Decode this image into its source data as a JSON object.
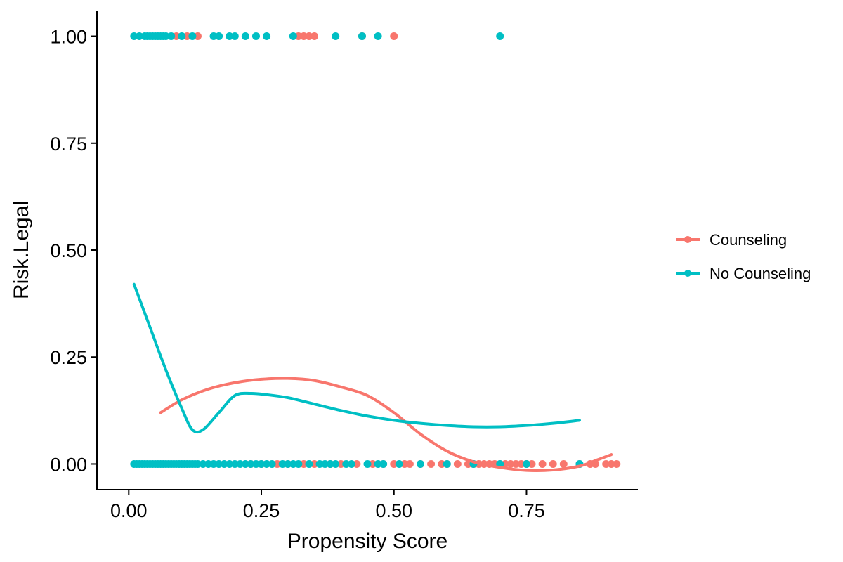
{
  "chart_data": {
    "type": "scatter",
    "title": "",
    "xlabel": "Propensity Score",
    "ylabel": "Risk.Legal",
    "xlim": [
      -0.06,
      0.96
    ],
    "ylim": [
      -0.06,
      1.06
    ],
    "x_ticks": [
      0.0,
      0.25,
      0.5,
      0.75
    ],
    "x_tick_labels": [
      "0.00",
      "0.25",
      "0.50",
      "0.75"
    ],
    "y_ticks": [
      0.0,
      0.25,
      0.5,
      0.75,
      1.0
    ],
    "y_tick_labels": [
      "0.00",
      "0.25",
      "0.50",
      "0.75",
      "1.00"
    ],
    "grid": false,
    "legend": {
      "position": "right",
      "entries": [
        {
          "label": "Counseling",
          "color": "#F8766D"
        },
        {
          "label": "No Counseling",
          "color": "#00BFC4"
        }
      ]
    },
    "series": [
      {
        "name": "Counseling",
        "color": "#F8766D",
        "points_y1": [
          0.09,
          0.11,
          0.13,
          0.32,
          0.33,
          0.34,
          0.35,
          0.44,
          0.5
        ],
        "points_y0": [
          0.23,
          0.25,
          0.28,
          0.3,
          0.33,
          0.35,
          0.38,
          0.4,
          0.43,
          0.46,
          0.48,
          0.5,
          0.52,
          0.53,
          0.55,
          0.57,
          0.59,
          0.6,
          0.62,
          0.64,
          0.65,
          0.66,
          0.67,
          0.68,
          0.69,
          0.7,
          0.71,
          0.72,
          0.73,
          0.74,
          0.75,
          0.76,
          0.78,
          0.8,
          0.82,
          0.85,
          0.87,
          0.88,
          0.9,
          0.91,
          0.92
        ],
        "smooth": {
          "x": [
            0.06,
            0.1,
            0.15,
            0.2,
            0.25,
            0.3,
            0.35,
            0.4,
            0.45,
            0.5,
            0.55,
            0.6,
            0.65,
            0.7,
            0.75,
            0.8,
            0.85,
            0.88,
            0.91
          ],
          "y": [
            0.12,
            0.15,
            0.175,
            0.19,
            0.198,
            0.2,
            0.195,
            0.18,
            0.16,
            0.12,
            0.07,
            0.03,
            0.005,
            -0.008,
            -0.015,
            -0.014,
            -0.005,
            0.008,
            0.022
          ]
        }
      },
      {
        "name": "No Counseling",
        "color": "#00BFC4",
        "points_y1": [
          0.01,
          0.02,
          0.03,
          0.035,
          0.04,
          0.045,
          0.05,
          0.055,
          0.06,
          0.065,
          0.07,
          0.08,
          0.1,
          0.12,
          0.16,
          0.17,
          0.19,
          0.2,
          0.22,
          0.24,
          0.26,
          0.31,
          0.39,
          0.44,
          0.47,
          0.7
        ],
        "points_y0": [
          0.01,
          0.015,
          0.02,
          0.025,
          0.03,
          0.035,
          0.04,
          0.045,
          0.05,
          0.055,
          0.06,
          0.065,
          0.07,
          0.075,
          0.08,
          0.085,
          0.09,
          0.095,
          0.1,
          0.105,
          0.11,
          0.115,
          0.12,
          0.125,
          0.13,
          0.14,
          0.15,
          0.16,
          0.17,
          0.18,
          0.19,
          0.2,
          0.21,
          0.22,
          0.23,
          0.24,
          0.25,
          0.26,
          0.27,
          0.29,
          0.3,
          0.31,
          0.32,
          0.34,
          0.36,
          0.37,
          0.38,
          0.39,
          0.41,
          0.42,
          0.45,
          0.47,
          0.48,
          0.51,
          0.55,
          0.6,
          0.65,
          0.7,
          0.75,
          0.85
        ],
        "smooth": {
          "x": [
            0.01,
            0.04,
            0.07,
            0.1,
            0.12,
            0.14,
            0.17,
            0.2,
            0.23,
            0.26,
            0.3,
            0.35,
            0.4,
            0.45,
            0.5,
            0.55,
            0.6,
            0.65,
            0.7,
            0.75,
            0.8,
            0.85
          ],
          "y": [
            0.42,
            0.32,
            0.22,
            0.13,
            0.08,
            0.08,
            0.12,
            0.16,
            0.165,
            0.162,
            0.155,
            0.14,
            0.125,
            0.112,
            0.102,
            0.095,
            0.09,
            0.087,
            0.087,
            0.09,
            0.095,
            0.102
          ]
        }
      }
    ]
  }
}
